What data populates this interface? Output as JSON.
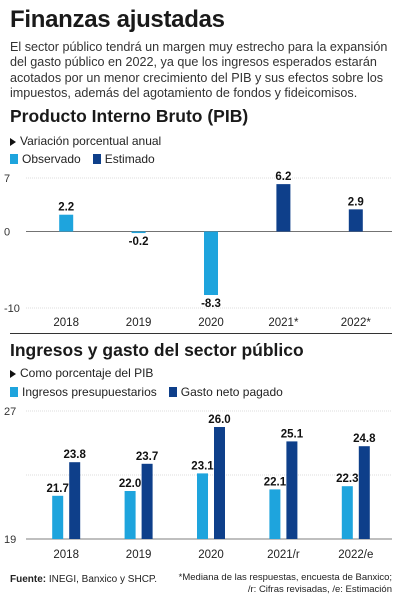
{
  "header": {
    "title": "Finanzas ajustadas",
    "intro": "El sector público tendrá un margen muy estrecho para la expansión del gasto público en 2022, ya que los ingresos esperados estarán acotados por un menor crecimiento del PIB y sus efectos sobre los impuestos, además del agotamiento de fondos y fideicomisos."
  },
  "colors": {
    "light": "#1ea4dd",
    "dark": "#0e3f8a",
    "axis": "#555555",
    "grid": "#bbbbbb"
  },
  "chart_data": [
    {
      "type": "bar",
      "title": "Producto Interno Bruto (PIB)",
      "subtitle": "Variación porcentual anual",
      "categories": [
        "2018",
        "2019",
        "2020",
        "2021*",
        "2022*"
      ],
      "series": [
        {
          "name": "Observado",
          "values": [
            2.2,
            -0.2,
            -8.3,
            null,
            null
          ]
        },
        {
          "name": "Estimado",
          "values": [
            null,
            null,
            null,
            6.2,
            2.9
          ]
        }
      ],
      "value_labels": [
        "2.2",
        "-0.2",
        "-8.3",
        "6.2",
        "2.9"
      ],
      "ylim": [
        -10,
        7
      ],
      "yticks": [
        "7",
        "0",
        "-10"
      ]
    },
    {
      "type": "bar",
      "title": "Ingresos y gasto del sector público",
      "subtitle": "Como porcentaje del PIB",
      "categories": [
        "2018",
        "2019",
        "2020",
        "2021/r",
        "2022/e"
      ],
      "series": [
        {
          "name": "Ingresos presupuestarios",
          "values": [
            21.7,
            22.0,
            23.1,
            22.1,
            22.3
          ]
        },
        {
          "name": "Gasto neto pagado",
          "values": [
            23.8,
            23.7,
            26.0,
            25.1,
            24.8
          ]
        }
      ],
      "ylim": [
        19,
        27
      ],
      "yticks": [
        "27",
        "19"
      ]
    }
  ],
  "footer": {
    "source_label": "Fuente:",
    "source_text": " INEGI, Banxico y SHCP.",
    "note1": "*Mediana de las respuestas, encuesta de Banxico;",
    "note2": "/r: Cifras revisadas, /e: Estimación"
  }
}
